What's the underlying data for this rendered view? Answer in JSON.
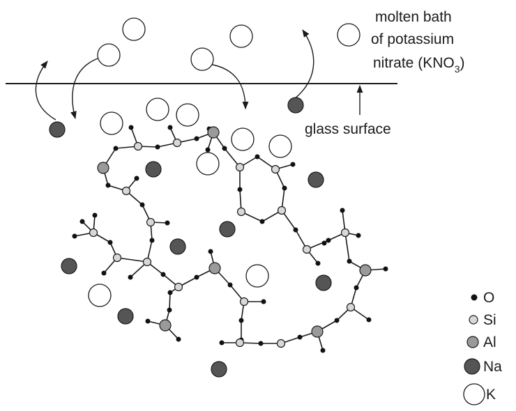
{
  "labels": {
    "bath_line1": "molten bath",
    "bath_line2": "of potassium",
    "bath_line3_prefix": "nitrate (KNO",
    "bath_line3_sub": "3",
    "bath_line3_suffix": ")",
    "surface": "glass surface"
  },
  "legend": [
    {
      "symbol": "O",
      "label": "O"
    },
    {
      "symbol": "Si",
      "label": "Si"
    },
    {
      "symbol": "Al",
      "label": "Al"
    },
    {
      "symbol": "Na",
      "label": "Na"
    },
    {
      "symbol": "K",
      "label": "K"
    }
  ],
  "colors": {
    "O": "#111111",
    "Si": "#d8d8d8",
    "Al": "#9a9a9a",
    "Na": "#555555",
    "K": "#ffffff",
    "line": "#1a1a1a"
  }
}
